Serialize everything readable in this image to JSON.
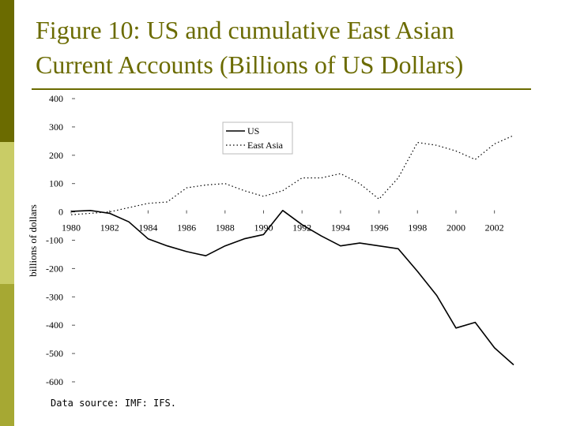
{
  "title": {
    "line1": "Figure 10: US and cumulative East Asian",
    "line2": "Current Accounts (Billions of US Dollars)"
  },
  "source": "Data source: IMF: IFS.",
  "colors": {
    "accent": "#6b6b00",
    "bar_light": "#c9cc66",
    "bar_mid": "#a6a833"
  },
  "chart_data": {
    "type": "line",
    "ylabel": "billions of dollars",
    "ylim": [
      -600,
      400
    ],
    "yticks": [
      400,
      300,
      200,
      100,
      0,
      -100,
      -200,
      -300,
      -400,
      -500,
      -600
    ],
    "xlim": [
      1980,
      2003
    ],
    "xticks": [
      1980,
      1982,
      1984,
      1986,
      1988,
      1990,
      1992,
      1994,
      1996,
      1998,
      2000,
      2002
    ],
    "legend_position": "top-right",
    "series": [
      {
        "name": "US",
        "style": "solid",
        "points": [
          [
            1980,
            2
          ],
          [
            1981,
            5
          ],
          [
            1982,
            -5
          ],
          [
            1983,
            -35
          ],
          [
            1984,
            -95
          ],
          [
            1985,
            -120
          ],
          [
            1986,
            -140
          ],
          [
            1987,
            -155
          ],
          [
            1988,
            -120
          ],
          [
            1989,
            -95
          ],
          [
            1990,
            -80
          ],
          [
            1991,
            5
          ],
          [
            1992,
            -45
          ],
          [
            1993,
            -85
          ],
          [
            1994,
            -120
          ],
          [
            1995,
            -110
          ],
          [
            1996,
            -120
          ],
          [
            1997,
            -130
          ],
          [
            1998,
            -210
          ],
          [
            1999,
            -295
          ],
          [
            2000,
            -410
          ],
          [
            2001,
            -390
          ],
          [
            2002,
            -480
          ],
          [
            2003,
            -540
          ]
        ]
      },
      {
        "name": "East Asia",
        "style": "dotted",
        "points": [
          [
            1980,
            -10
          ],
          [
            1981,
            -5
          ],
          [
            1982,
            0
          ],
          [
            1983,
            15
          ],
          [
            1984,
            30
          ],
          [
            1985,
            35
          ],
          [
            1986,
            85
          ],
          [
            1987,
            95
          ],
          [
            1988,
            100
          ],
          [
            1989,
            75
          ],
          [
            1990,
            55
          ],
          [
            1991,
            75
          ],
          [
            1992,
            120
          ],
          [
            1993,
            120
          ],
          [
            1994,
            135
          ],
          [
            1995,
            100
          ],
          [
            1996,
            45
          ],
          [
            1997,
            120
          ],
          [
            1998,
            245
          ],
          [
            1999,
            235
          ],
          [
            2000,
            215
          ],
          [
            2001,
            185
          ],
          [
            2002,
            240
          ],
          [
            2003,
            270
          ]
        ]
      }
    ]
  }
}
